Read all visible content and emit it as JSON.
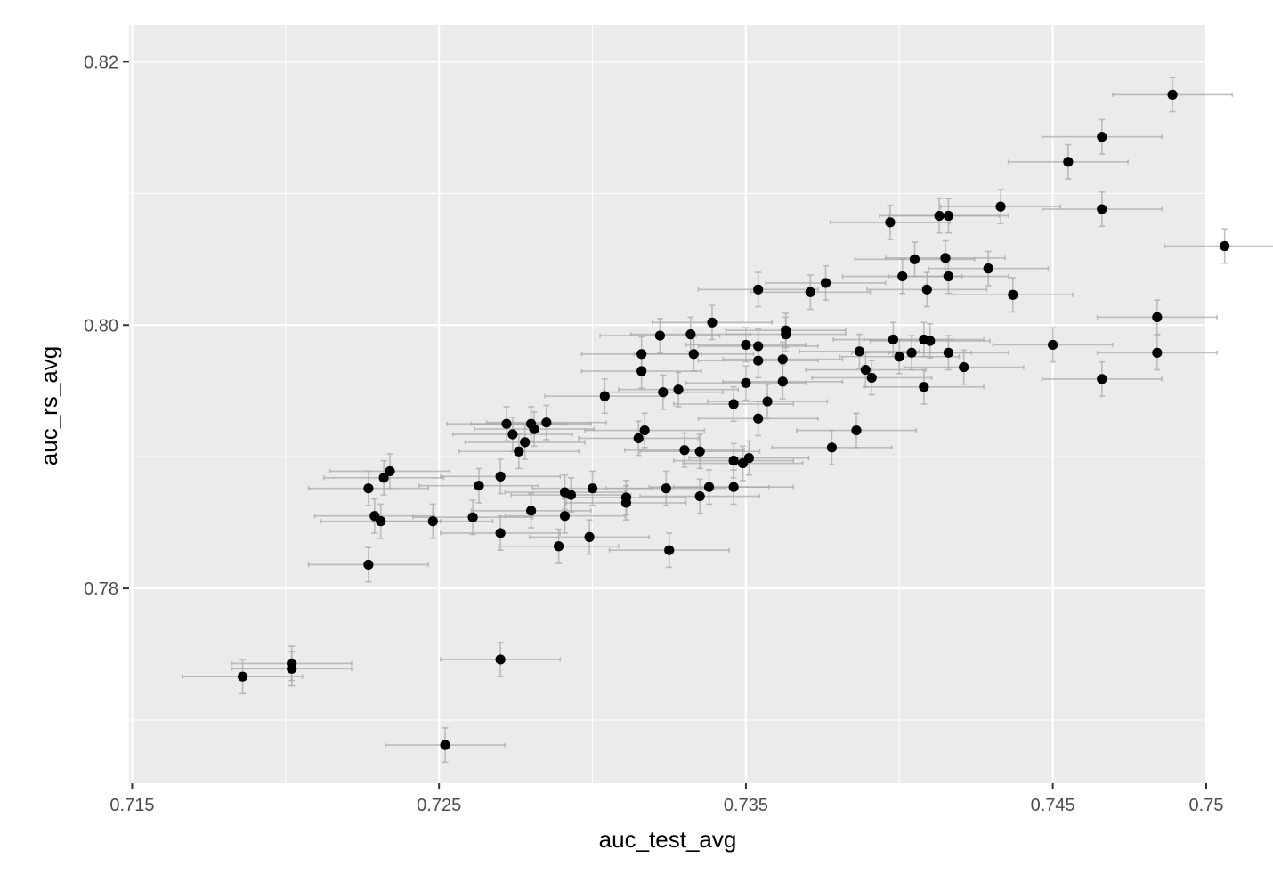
{
  "chart_data": {
    "type": "scatter",
    "title": "",
    "xlabel": "auc_test_avg",
    "ylabel": "auc_rs_avg",
    "xlim": [
      0.7149,
      0.75
    ],
    "ylim": [
      0.7652,
      0.8228
    ],
    "x_ticks": [
      {
        "value": 0.715,
        "label": "0.715"
      },
      {
        "value": 0.725,
        "label": "0.725"
      },
      {
        "value": 0.735,
        "label": "0.735"
      },
      {
        "value": 0.745,
        "label": "0.745"
      },
      {
        "value": 0.75,
        "label": "0.75"
      }
    ],
    "x_minor": [
      0.72,
      0.73,
      0.74
    ],
    "y_ticks": [
      {
        "value": 0.78,
        "label": "0.78"
      },
      {
        "value": 0.8,
        "label": "0.80"
      },
      {
        "value": 0.82,
        "label": "0.82"
      }
    ],
    "y_minor": [
      0.77,
      0.79,
      0.81
    ],
    "grid": true,
    "panel_background": "#ebebeb",
    "grid_color": "#ffffff",
    "point_color": "#000000",
    "errorbar_color": "#a6a6a6",
    "x_error": 0.00195,
    "y_error": 0.0013,
    "points": [
      [
        0.7489,
        0.8175
      ],
      [
        0.7466,
        0.8143
      ],
      [
        0.7455,
        0.8124
      ],
      [
        0.7466,
        0.8088
      ],
      [
        0.7506,
        0.806
      ],
      [
        0.7484,
        0.8006
      ],
      [
        0.7484,
        0.7979
      ],
      [
        0.7466,
        0.7959
      ],
      [
        0.745,
        0.7985
      ],
      [
        0.7433,
        0.809
      ],
      [
        0.7413,
        0.8083
      ],
      [
        0.7416,
        0.8083
      ],
      [
        0.7397,
        0.8078
      ],
      [
        0.7405,
        0.805
      ],
      [
        0.7415,
        0.8051
      ],
      [
        0.7401,
        0.8037
      ],
      [
        0.7416,
        0.8037
      ],
      [
        0.7429,
        0.8043
      ],
      [
        0.7409,
        0.8027
      ],
      [
        0.7437,
        0.8023
      ],
      [
        0.7398,
        0.7989
      ],
      [
        0.7408,
        0.7989
      ],
      [
        0.741,
        0.7988
      ],
      [
        0.7404,
        0.7979
      ],
      [
        0.74,
        0.7976
      ],
      [
        0.7387,
        0.798
      ],
      [
        0.7416,
        0.7979
      ],
      [
        0.7421,
        0.7968
      ],
      [
        0.7389,
        0.7966
      ],
      [
        0.7391,
        0.796
      ],
      [
        0.7408,
        0.7953
      ],
      [
        0.7386,
        0.792
      ],
      [
        0.7378,
        0.7907
      ],
      [
        0.7376,
        0.8032
      ],
      [
        0.7371,
        0.8025
      ],
      [
        0.7354,
        0.8027
      ],
      [
        0.7339,
        0.8002
      ],
      [
        0.7363,
        0.7996
      ],
      [
        0.7363,
        0.7993
      ],
      [
        0.735,
        0.7985
      ],
      [
        0.7354,
        0.7984
      ],
      [
        0.7354,
        0.7973
      ],
      [
        0.7362,
        0.7974
      ],
      [
        0.7362,
        0.7957
      ],
      [
        0.735,
        0.7956
      ],
      [
        0.7357,
        0.7942
      ],
      [
        0.7346,
        0.794
      ],
      [
        0.7354,
        0.7929
      ],
      [
        0.7351,
        0.7899
      ],
      [
        0.7346,
        0.7897
      ],
      [
        0.7349,
        0.7895
      ],
      [
        0.7346,
        0.7877
      ],
      [
        0.7332,
        0.7993
      ],
      [
        0.7322,
        0.7992
      ],
      [
        0.7333,
        0.7978
      ],
      [
        0.7316,
        0.7978
      ],
      [
        0.7316,
        0.7965
      ],
      [
        0.7323,
        0.7949
      ],
      [
        0.7328,
        0.7951
      ],
      [
        0.7304,
        0.7946
      ],
      [
        0.7317,
        0.792
      ],
      [
        0.7315,
        0.7914
      ],
      [
        0.733,
        0.7905
      ],
      [
        0.7335,
        0.7904
      ],
      [
        0.7324,
        0.7876
      ],
      [
        0.7335,
        0.787
      ],
      [
        0.7338,
        0.7877
      ],
      [
        0.7311,
        0.7869
      ],
      [
        0.7311,
        0.7865
      ],
      [
        0.73,
        0.7876
      ],
      [
        0.7325,
        0.7829
      ],
      [
        0.7291,
        0.7873
      ],
      [
        0.7293,
        0.7871
      ],
      [
        0.7291,
        0.7855
      ],
      [
        0.7289,
        0.7832
      ],
      [
        0.7299,
        0.7839
      ],
      [
        0.7285,
        0.7926
      ],
      [
        0.728,
        0.7925
      ],
      [
        0.7281,
        0.7921
      ],
      [
        0.7272,
        0.7925
      ],
      [
        0.7274,
        0.7917
      ],
      [
        0.7278,
        0.7911
      ],
      [
        0.7276,
        0.7904
      ],
      [
        0.727,
        0.7885
      ],
      [
        0.728,
        0.7859
      ],
      [
        0.727,
        0.7842
      ],
      [
        0.7263,
        0.7878
      ],
      [
        0.7261,
        0.7854
      ],
      [
        0.7248,
        0.7851
      ],
      [
        0.7234,
        0.7889
      ],
      [
        0.7232,
        0.7884
      ],
      [
        0.7227,
        0.7876
      ],
      [
        0.7229,
        0.7855
      ],
      [
        0.7231,
        0.7851
      ],
      [
        0.7227,
        0.7818
      ],
      [
        0.727,
        0.7746
      ],
      [
        0.7252,
        0.7681
      ],
      [
        0.7202,
        0.7743
      ],
      [
        0.7202,
        0.7739
      ],
      [
        0.7186,
        0.7733
      ]
    ]
  }
}
